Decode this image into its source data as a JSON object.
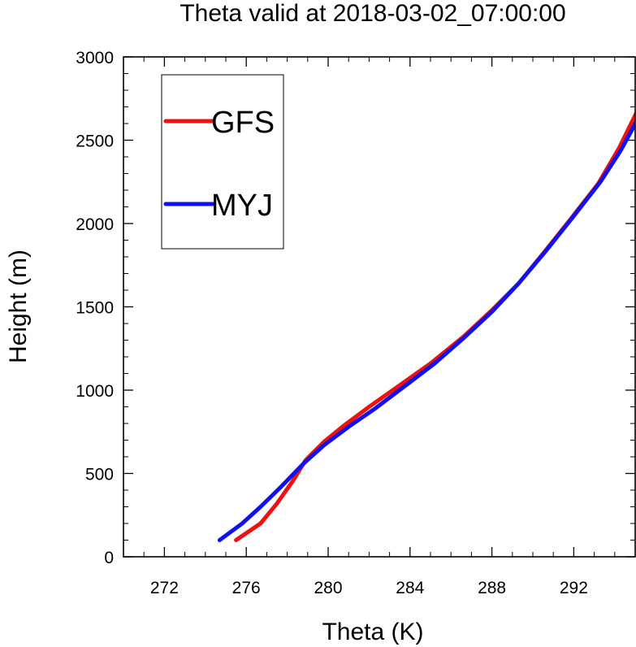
{
  "chart_data": {
    "type": "line",
    "title": "Theta valid at 2018-03-02_07:00:00",
    "xlabel": "Theta (K)",
    "ylabel": "Height (m)",
    "xlim": [
      270,
      295
    ],
    "ylim": [
      0,
      3000
    ],
    "x_ticks": [
      272,
      276,
      280,
      284,
      288,
      292
    ],
    "x_minor_step": 1,
    "y_ticks": [
      0,
      500,
      1000,
      1500,
      2000,
      2500,
      3000
    ],
    "y_minor_step": 100,
    "grid": false,
    "legend": {
      "position": "top-left",
      "entries": [
        "GFS",
        "MYJ"
      ]
    },
    "series": [
      {
        "name": "GFS",
        "color": "#ee1111",
        "points": [
          [
            275.5,
            100
          ],
          [
            276.7,
            200
          ],
          [
            277.5,
            320
          ],
          [
            278.3,
            460
          ],
          [
            278.9,
            580
          ],
          [
            279.8,
            690
          ],
          [
            280.8,
            790
          ],
          [
            282.0,
            900
          ],
          [
            283.5,
            1030
          ],
          [
            285.0,
            1160
          ],
          [
            286.6,
            1320
          ],
          [
            288.0,
            1480
          ],
          [
            289.3,
            1640
          ],
          [
            290.5,
            1820
          ],
          [
            291.8,
            2020
          ],
          [
            293.2,
            2240
          ],
          [
            294.2,
            2450
          ],
          [
            295.0,
            2650
          ],
          [
            295.6,
            2790
          ]
        ]
      },
      {
        "name": "MYJ",
        "color": "#1111ee",
        "points": [
          [
            274.7,
            100
          ],
          [
            275.8,
            200
          ],
          [
            276.7,
            300
          ],
          [
            277.7,
            420
          ],
          [
            278.8,
            560
          ],
          [
            279.8,
            670
          ],
          [
            281.0,
            780
          ],
          [
            282.3,
            890
          ],
          [
            283.7,
            1020
          ],
          [
            285.2,
            1160
          ],
          [
            286.6,
            1310
          ],
          [
            288.0,
            1470
          ],
          [
            289.3,
            1640
          ],
          [
            290.6,
            1830
          ],
          [
            291.9,
            2030
          ],
          [
            293.3,
            2250
          ],
          [
            294.3,
            2440
          ],
          [
            295.1,
            2620
          ],
          [
            295.7,
            2760
          ]
        ]
      }
    ]
  }
}
